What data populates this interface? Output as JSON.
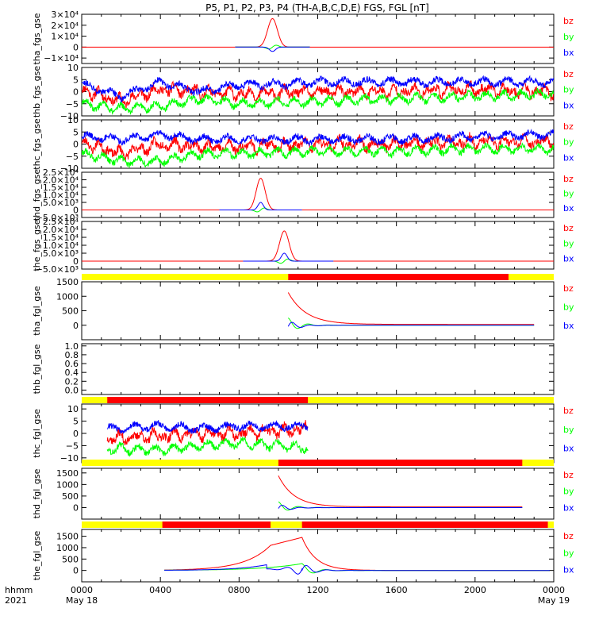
{
  "title": "P5, P1, P2, P3, P4 (TH-A,B,C,D,E) FGS, FGL [nT]",
  "time_axis": {
    "label_top": "hhmm",
    "label_bottom": "2021",
    "ticks": [
      {
        "hour": 0,
        "label": "0000",
        "date": "May 18"
      },
      {
        "hour": 4,
        "label": "0400",
        "date": ""
      },
      {
        "hour": 8,
        "label": "0800",
        "date": ""
      },
      {
        "hour": 12,
        "label": "1200",
        "date": ""
      },
      {
        "hour": 16,
        "label": "1600",
        "date": ""
      },
      {
        "hour": 20,
        "label": "2000",
        "date": ""
      },
      {
        "hour": 24,
        "label": "0000",
        "date": "May 19"
      }
    ]
  },
  "colors": {
    "bz": "#ff0000",
    "by": "#00ff00",
    "bx": "#0000ff",
    "mode_slow": "#ffff00",
    "mode_fast": "#ff0000"
  },
  "legend": [
    "bz",
    "by",
    "bx"
  ],
  "chart_data": {
    "type": "line",
    "x_units": "hours since 2021-05-18 00:00",
    "panels": [
      {
        "id": "tha_fgs_gse",
        "ylabel": "tha_fgs_gse",
        "ylim": [
          -15000,
          30000
        ],
        "ticks": [
          {
            "v": -10000,
            "l": "−1×10⁴"
          },
          {
            "v": 0,
            "l": "0"
          },
          {
            "v": 10000,
            "l": "1×10⁴"
          },
          {
            "v": 20000,
            "l": "2×10⁴"
          },
          {
            "v": 30000,
            "l": "3×10⁴"
          }
        ],
        "style": "spike",
        "range": [
          7.8,
          11.6
        ],
        "center": 9.7,
        "width": 0.35,
        "peak": 26000,
        "x_amp": -4000,
        "y_amp": 2500
      },
      {
        "id": "thb_fgs_gse",
        "ylabel": "thb_fgs_gse",
        "ylim": [
          -10,
          10
        ],
        "ticks": [
          {
            "v": -10,
            "l": "−10"
          },
          {
            "v": -5,
            "l": "−5"
          },
          {
            "v": 0,
            "l": "0"
          },
          {
            "v": 5,
            "l": "5"
          },
          {
            "v": 10,
            "l": "10"
          }
        ],
        "style": "noisy",
        "range": [
          0,
          24
        ],
        "seed": 11,
        "bx": [
          [
            0,
            3
          ],
          [
            2,
            -2
          ],
          [
            4,
            4
          ],
          [
            6,
            0
          ],
          [
            8,
            3
          ],
          [
            10,
            3
          ],
          [
            12,
            4
          ],
          [
            16,
            4
          ],
          [
            20,
            4
          ],
          [
            24,
            4
          ]
        ],
        "by": [
          [
            0,
            -5
          ],
          [
            2,
            -7
          ],
          [
            4,
            -6
          ],
          [
            6,
            -3
          ],
          [
            8,
            -5
          ],
          [
            12,
            -4
          ],
          [
            16,
            -3
          ],
          [
            20,
            -2
          ],
          [
            24,
            -1
          ]
        ],
        "bz": [
          [
            0,
            1
          ],
          [
            2,
            -4
          ],
          [
            4,
            1
          ],
          [
            6,
            0
          ],
          [
            8,
            -1
          ],
          [
            12,
            0
          ],
          [
            16,
            0
          ],
          [
            20,
            1
          ],
          [
            24,
            0
          ]
        ]
      },
      {
        "id": "thc_fgs_gse",
        "ylabel": "thc_fgs_gse",
        "ylim": [
          -10,
          10
        ],
        "ticks": [
          {
            "v": -10,
            "l": "−10"
          },
          {
            "v": -5,
            "l": "−5"
          },
          {
            "v": 0,
            "l": "0"
          },
          {
            "v": 5,
            "l": "5"
          },
          {
            "v": 10,
            "l": "10"
          }
        ],
        "style": "noisy",
        "range": [
          0,
          24
        ],
        "seed": 23,
        "bx": [
          [
            0,
            3
          ],
          [
            2,
            2
          ],
          [
            4,
            4
          ],
          [
            6,
            2
          ],
          [
            8,
            2
          ],
          [
            12,
            2
          ],
          [
            16,
            2
          ],
          [
            20,
            3
          ],
          [
            24,
            4
          ]
        ],
        "by": [
          [
            0,
            -4
          ],
          [
            2,
            -7
          ],
          [
            4,
            -7
          ],
          [
            6,
            -4
          ],
          [
            8,
            -4
          ],
          [
            12,
            -3
          ],
          [
            16,
            -3
          ],
          [
            20,
            -2
          ],
          [
            24,
            -2
          ]
        ],
        "bz": [
          [
            0,
            1
          ],
          [
            2,
            -4
          ],
          [
            4,
            0
          ],
          [
            6,
            -1
          ],
          [
            8,
            -1
          ],
          [
            12,
            0
          ],
          [
            16,
            0
          ],
          [
            20,
            1
          ],
          [
            24,
            1
          ]
        ]
      },
      {
        "id": "thd_fgs_gse",
        "ylabel": "thd_fgs_gse",
        "ylim": [
          -5000,
          25000
        ],
        "ticks": [
          {
            "v": -5000,
            "l": "−5.0×10³"
          },
          {
            "v": 0,
            "l": "0"
          },
          {
            "v": 5000,
            "l": "5.0×10³"
          },
          {
            "v": 10000,
            "l": "1.0×10⁴"
          },
          {
            "v": 15000,
            "l": "1.5×10⁴"
          },
          {
            "v": 20000,
            "l": "2.0×10⁴"
          },
          {
            "v": 25000,
            "l": "2.5×10⁴"
          }
        ],
        "style": "spike",
        "range": [
          7.0,
          11.2
        ],
        "center": 9.1,
        "width": 0.32,
        "peak": 21000,
        "x_amp": 5000,
        "y_amp": 2000
      },
      {
        "id": "the_fgs_gse",
        "ylabel": "the_fgs_gse",
        "ylim": [
          -5000,
          25000
        ],
        "ticks": [
          {
            "v": -5000,
            "l": "−5.0×10³"
          },
          {
            "v": 0,
            "l": "0"
          },
          {
            "v": 5000,
            "l": "5.0×10³"
          },
          {
            "v": 10000,
            "l": "1.0×10⁴"
          },
          {
            "v": 15000,
            "l": "1.5×10⁴"
          },
          {
            "v": 20000,
            "l": "2.0×10⁴"
          },
          {
            "v": 25000,
            "l": "2.5×10⁴"
          }
        ],
        "style": "spike",
        "range": [
          8.2,
          12.8
        ],
        "center": 10.3,
        "width": 0.34,
        "peak": 19000,
        "x_amp": 5000,
        "y_amp": 2000
      },
      {
        "id": "tha_fgl_gse",
        "ylabel": "tha_fgl_gse",
        "ylim": [
          -500,
          1500
        ],
        "ticks": [
          {
            "v": 0,
            "l": "0"
          },
          {
            "v": 500,
            "l": "500"
          },
          {
            "v": 1000,
            "l": "1000"
          },
          {
            "v": 1500,
            "l": "1500"
          }
        ],
        "mode_bar": {
          "slow": [
            [
              0,
              10.5
            ]
          ],
          "fast": [
            [
              10.5,
              21.7
            ]
          ]
        },
        "style": "decay",
        "range": [
          10.5,
          23.0
        ],
        "start": 1100,
        "tau": 0.9
      },
      {
        "id": "thb_fgl_gse",
        "ylabel": "thb_fgl_gse",
        "ylim": [
          -0.1,
          1.05
        ],
        "ticks": [
          {
            "v": 0,
            "l": "0.0"
          },
          {
            "v": 0.2,
            "l": "0.2"
          },
          {
            "v": 0.4,
            "l": "0.4"
          },
          {
            "v": 0.6,
            "l": "0.6"
          },
          {
            "v": 0.8,
            "l": "0.8"
          },
          {
            "v": 1.0,
            "l": "1.0"
          }
        ],
        "style": "empty"
      },
      {
        "id": "thc_fgl_gse",
        "ylabel": "thc_fgl_gse",
        "ylim": [
          -12,
          12
        ],
        "ticks": [
          {
            "v": -10,
            "l": "−10"
          },
          {
            "v": -5,
            "l": "−5"
          },
          {
            "v": 0,
            "l": "0"
          },
          {
            "v": 5,
            "l": "5"
          },
          {
            "v": 10,
            "l": "10"
          }
        ],
        "mode_bar": {
          "slow": [
            [
              0,
              1.3
            ]
          ],
          "fast": [
            [
              1.3,
              11.5
            ]
          ]
        },
        "style": "noisy",
        "range": [
          1.3,
          11.5
        ],
        "seed": 37,
        "bx": [
          [
            1.3,
            2
          ],
          [
            4,
            3
          ],
          [
            6,
            2
          ],
          [
            8,
            3
          ],
          [
            10,
            3
          ],
          [
            11.5,
            3
          ]
        ],
        "by": [
          [
            1.3,
            -6
          ],
          [
            4,
            -7
          ],
          [
            6,
            -5
          ],
          [
            8,
            -4
          ],
          [
            10,
            -5
          ],
          [
            11.5,
            -6
          ]
        ],
        "bz": [
          [
            1.3,
            -2
          ],
          [
            4,
            -1
          ],
          [
            6,
            0
          ],
          [
            8,
            0
          ],
          [
            10,
            1
          ],
          [
            11.5,
            2
          ]
        ]
      },
      {
        "id": "thd_fgl_gse",
        "ylabel": "thd_fgl_gse",
        "ylim": [
          -500,
          1700
        ],
        "ticks": [
          {
            "v": 0,
            "l": "0"
          },
          {
            "v": 500,
            "l": "500"
          },
          {
            "v": 1000,
            "l": "1000"
          },
          {
            "v": 1500,
            "l": "1500"
          }
        ],
        "mode_bar": {
          "slow": [
            [
              0,
              10.0
            ]
          ],
          "fast": [
            [
              10.0,
              22.4
            ]
          ]
        },
        "style": "decay",
        "range": [
          10.0,
          22.4
        ],
        "start": 1350,
        "tau": 0.8
      },
      {
        "id": "the_fgl_gse",
        "ylabel": "the_fgl_gse",
        "ylim": [
          -500,
          1800
        ],
        "ticks": [
          {
            "v": 0,
            "l": "0"
          },
          {
            "v": 500,
            "l": "500"
          },
          {
            "v": 1000,
            "l": "1000"
          },
          {
            "v": 1500,
            "l": "1500"
          }
        ],
        "mode_bar": {
          "slow": [
            [
              0,
              4.1
            ],
            [
              9.6,
              11.2
            ]
          ],
          "fast": [
            [
              4.1,
              9.6
            ],
            [
              11.2,
              23.7
            ]
          ]
        },
        "style": "ramp",
        "range": [
          4.2,
          23.8
        ],
        "peak_t": 11.2,
        "peak": 1450
      }
    ]
  }
}
